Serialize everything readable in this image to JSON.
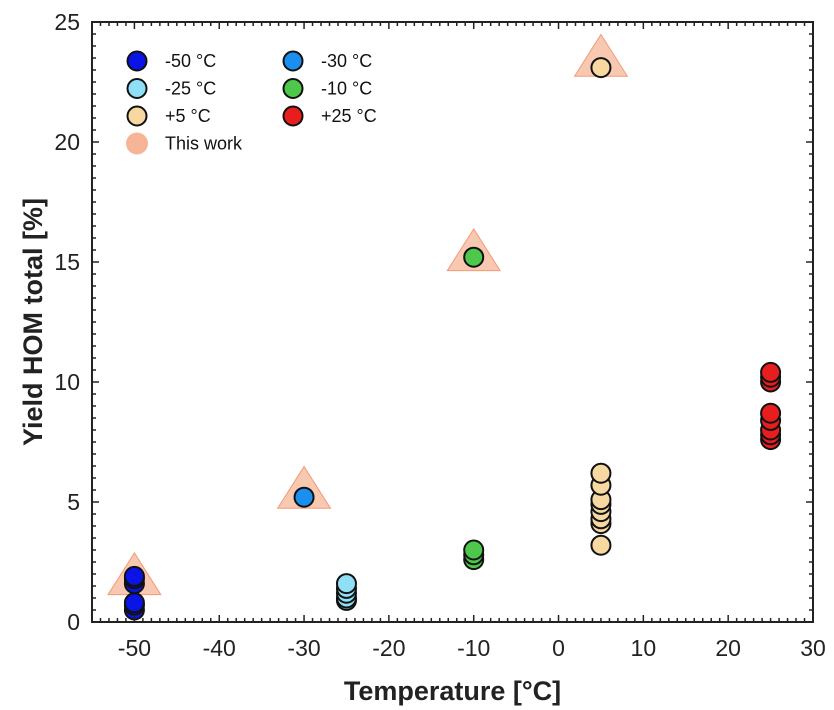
{
  "chart_data": {
    "type": "scatter",
    "xlabel": "Temperature [°C]",
    "ylabel": "Yield HOM total [%]",
    "xlim": [
      -55,
      30
    ],
    "ylim": [
      0,
      25
    ],
    "xticks": [
      -50,
      -40,
      -30,
      -20,
      -10,
      0,
      10,
      20,
      30
    ],
    "yticks": [
      0,
      5,
      10,
      15,
      20,
      25
    ],
    "grid": false,
    "legend_position": "top-left",
    "series": [
      {
        "name": "-50 °C",
        "color": "#0a14e6",
        "marker": "circle",
        "points": [
          [
            -50,
            0.5
          ],
          [
            -50,
            0.7
          ],
          [
            -50,
            0.8
          ],
          [
            -50,
            1.6
          ],
          [
            -50,
            1.8
          ],
          [
            -50,
            1.9
          ]
        ]
      },
      {
        "name": "-30 °C",
        "color": "#1a8ff0",
        "marker": "circle",
        "points": [
          [
            -30,
            5.2
          ]
        ]
      },
      {
        "name": "-25 °C",
        "color": "#8fe0f7",
        "marker": "circle",
        "points": [
          [
            -25,
            0.9
          ],
          [
            -25,
            1.0
          ],
          [
            -25,
            1.2
          ],
          [
            -25,
            1.4
          ],
          [
            -25,
            1.6
          ]
        ]
      },
      {
        "name": "-10 °C",
        "color": "#4ec84a",
        "marker": "circle",
        "points": [
          [
            -10,
            2.6
          ],
          [
            -10,
            2.8
          ],
          [
            -10,
            3.0
          ],
          [
            -10,
            15.2
          ]
        ]
      },
      {
        "name": "+5 °C",
        "color": "#f6d8a0",
        "marker": "circle",
        "points": [
          [
            5,
            3.2
          ],
          [
            5,
            4.1
          ],
          [
            5,
            4.3
          ],
          [
            5,
            4.6
          ],
          [
            5,
            4.9
          ],
          [
            5,
            5.1
          ],
          [
            5,
            5.7
          ],
          [
            5,
            6.2
          ],
          [
            5,
            23.1
          ]
        ]
      },
      {
        "name": "+25 °C",
        "color": "#e81e1e",
        "marker": "circle",
        "points": [
          [
            25,
            7.6
          ],
          [
            25,
            7.8
          ],
          [
            25,
            8.0
          ],
          [
            25,
            8.4
          ],
          [
            25,
            8.7
          ],
          [
            25,
            10.0
          ],
          [
            25,
            10.2
          ],
          [
            25,
            10.4
          ]
        ]
      },
      {
        "name": "This work",
        "color": "#f7b597",
        "marker": "triangle",
        "points": [
          [
            -50,
            1.8
          ],
          [
            -30,
            5.4
          ],
          [
            -10,
            15.3
          ],
          [
            5,
            23.4
          ]
        ]
      }
    ]
  }
}
